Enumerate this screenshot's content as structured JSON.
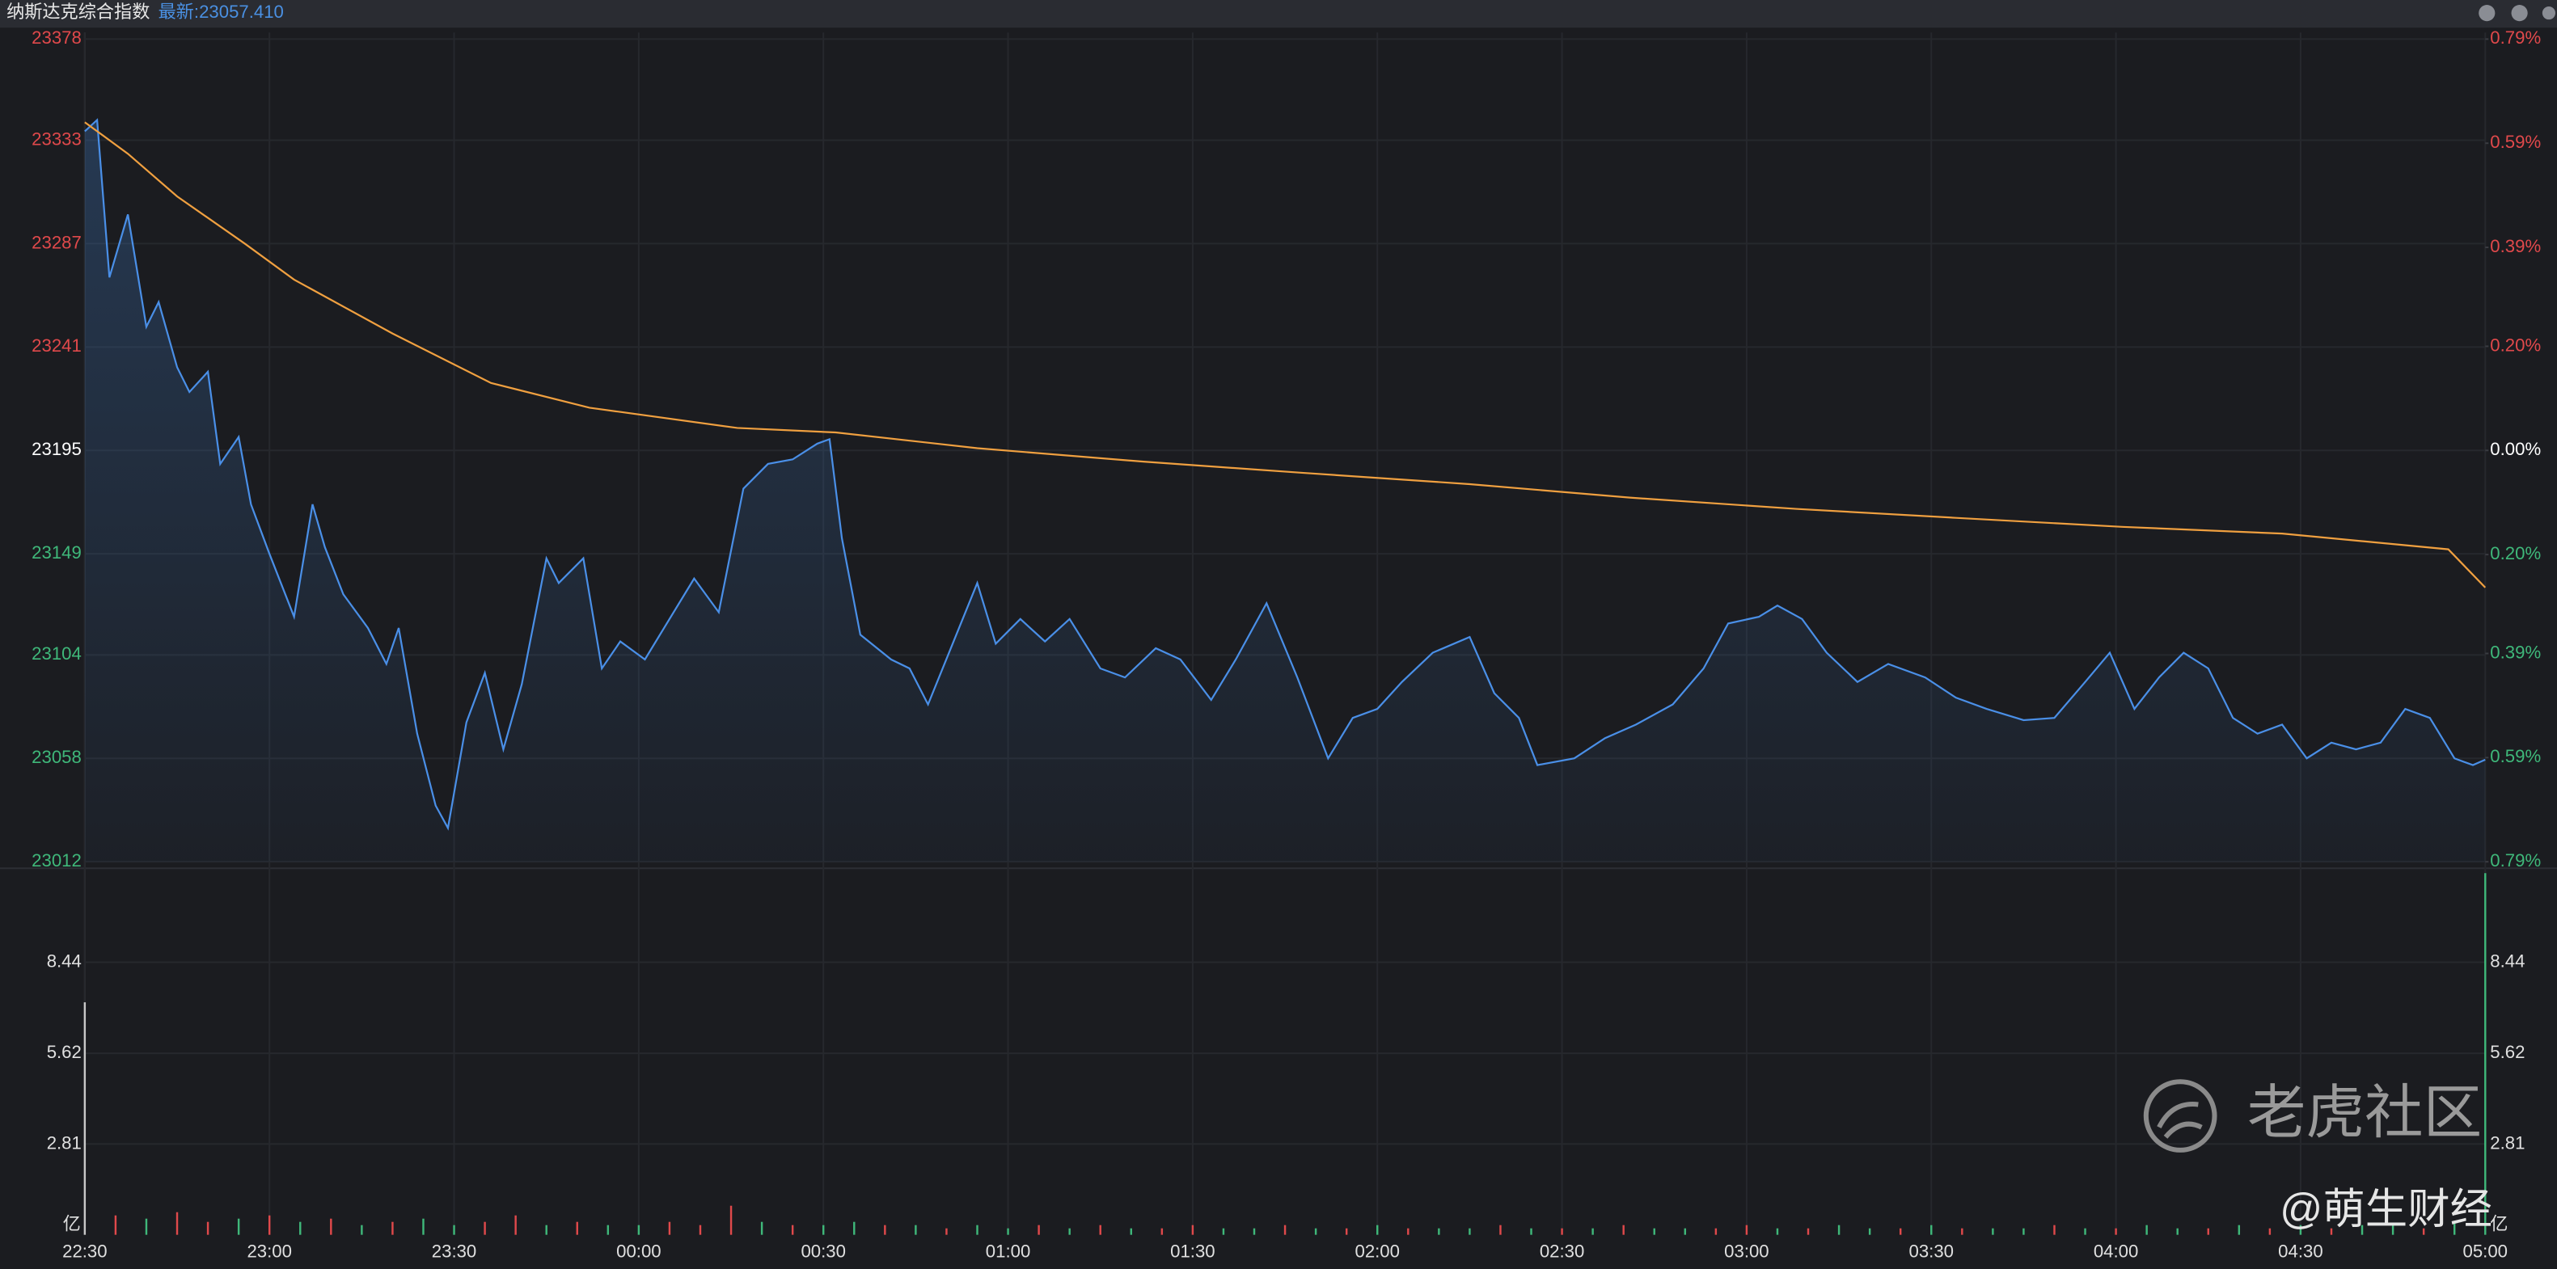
{
  "chart_data": [
    {
      "type": "line",
      "title": "纳斯达克综合指数",
      "subtitle": "最新:23057.410",
      "xlim": [
        0,
        390
      ],
      "xticks": [
        {
          "value": 0,
          "label": "22:30"
        },
        {
          "value": 30,
          "label": "23:00"
        },
        {
          "value": 60,
          "label": "23:30"
        },
        {
          "value": 90,
          "label": "00:00"
        },
        {
          "value": 120,
          "label": "00:30"
        },
        {
          "value": 150,
          "label": "01:00"
        },
        {
          "value": 180,
          "label": "01:30"
        },
        {
          "value": 210,
          "label": "02:00"
        },
        {
          "value": 240,
          "label": "02:30"
        },
        {
          "value": 270,
          "label": "03:00"
        },
        {
          "value": 300,
          "label": "03:30"
        },
        {
          "value": 330,
          "label": "04:00"
        },
        {
          "value": 360,
          "label": "04:30"
        },
        {
          "value": 390,
          "label": "05:00"
        }
      ],
      "ylim": [
        23012,
        23378
      ],
      "yticks": [
        23378,
        23333,
        23287,
        23241,
        23195,
        23149,
        23104,
        23058,
        23012
      ],
      "y2lim": [
        -0.79,
        0.79
      ],
      "y2ticks": [
        {
          "value": 0.79,
          "label": "0.79%"
        },
        {
          "value": 0.59,
          "label": "0.59%"
        },
        {
          "value": 0.39,
          "label": "0.39%"
        },
        {
          "value": 0.2,
          "label": "0.20%"
        },
        {
          "value": 0,
          "label": "0.00%"
        },
        {
          "value": -0.2,
          "label": "0.20%"
        },
        {
          "value": -0.39,
          "label": "0.39%"
        },
        {
          "value": -0.59,
          "label": "0.59%"
        },
        {
          "value": -0.79,
          "label": "0.79%"
        }
      ],
      "up_color": "#e0494b",
      "down_color": "#3fb87a",
      "flat_color": "#ffffff",
      "grid": true,
      "series": [
        {
          "color": "#4a8fe7",
          "x": [
            0,
            2,
            4,
            7,
            10,
            12,
            15,
            17,
            20,
            22,
            25,
            27,
            30,
            34,
            37,
            39,
            42,
            46,
            49,
            51,
            54,
            57,
            59,
            62,
            65,
            68,
            71,
            75,
            77,
            81,
            84,
            87,
            91,
            95,
            99,
            103,
            107,
            111,
            115,
            119,
            121,
            123,
            126,
            131,
            134,
            137,
            141,
            145,
            148,
            152,
            156,
            160,
            165,
            169,
            174,
            178,
            183,
            187,
            192,
            197,
            202,
            206,
            210,
            214,
            219,
            225,
            229,
            233,
            236,
            242,
            247,
            252,
            258,
            263,
            267,
            272,
            275,
            279,
            283,
            288,
            293,
            299,
            304,
            309,
            315,
            320,
            325,
            329,
            333,
            337,
            341,
            345,
            349,
            353,
            357,
            361,
            365,
            369,
            373,
            377,
            381,
            385,
            388,
            390
          ],
          "values": [
            23337,
            23342,
            23272,
            23300,
            23250,
            23261,
            23232,
            23221,
            23230,
            23189,
            23201,
            23171,
            23149,
            23121,
            23171,
            23152,
            23131,
            23116,
            23100,
            23116,
            23069,
            23037,
            23027,
            23074,
            23096,
            23062,
            23091,
            23147,
            23136,
            23147,
            23098,
            23110,
            23102,
            23120,
            23138,
            23123,
            23178,
            23189,
            23191,
            23198,
            23200,
            23156,
            23113,
            23102,
            23098,
            23082,
            23109,
            23136,
            23109,
            23120,
            23110,
            23120,
            23098,
            23094,
            23107,
            23102,
            23084,
            23102,
            23127,
            23094,
            23058,
            23076,
            23080,
            23092,
            23105,
            23112,
            23087,
            23076,
            23055,
            23058,
            23067,
            23073,
            23082,
            23098,
            23118,
            23121,
            23126,
            23120,
            23105,
            23092,
            23100,
            23094,
            23085,
            23080,
            23075,
            23076,
            23092,
            23105,
            23080,
            23094,
            23105,
            23098,
            23076,
            23069,
            23073,
            23058,
            23065,
            23062,
            23065,
            23080,
            23076,
            23058,
            23055,
            23057.41
          ]
        },
        {
          "color": "#f0a040",
          "x": [
            0,
            7,
            15,
            26,
            34,
            50,
            66,
            82,
            106,
            122,
            145,
            172,
            198,
            225,
            251,
            278,
            304,
            331,
            357,
            384,
            390
          ],
          "values": [
            23341,
            23327,
            23308,
            23287,
            23271,
            23247,
            23225,
            23214,
            23205,
            23203,
            23196,
            23190,
            23185,
            23180,
            23174,
            23169,
            23165,
            23161,
            23158,
            23151,
            23134
          ]
        }
      ]
    },
    {
      "type": "bar",
      "unit_label": "亿",
      "xlim": [
        0,
        390
      ],
      "ylim": [
        0,
        11.25
      ],
      "yticks": [
        8.44,
        5.62,
        2.81
      ],
      "x": [
        0,
        5,
        10,
        15,
        20,
        25,
        30,
        35,
        40,
        45,
        50,
        55,
        60,
        65,
        70,
        75,
        80,
        85,
        90,
        95,
        100,
        105,
        110,
        115,
        120,
        125,
        130,
        135,
        140,
        145,
        150,
        155,
        160,
        165,
        170,
        175,
        180,
        185,
        190,
        195,
        200,
        205,
        210,
        215,
        220,
        225,
        230,
        235,
        240,
        245,
        250,
        255,
        260,
        265,
        270,
        275,
        280,
        285,
        290,
        295,
        300,
        305,
        310,
        315,
        320,
        325,
        330,
        335,
        340,
        345,
        350,
        355,
        360,
        365,
        370,
        375,
        380,
        385,
        390
      ],
      "values": [
        7.2,
        0.6,
        0.5,
        0.7,
        0.4,
        0.5,
        0.6,
        0.4,
        0.5,
        0.3,
        0.4,
        0.5,
        0.3,
        0.4,
        0.6,
        0.3,
        0.4,
        0.3,
        0.3,
        0.4,
        0.3,
        0.9,
        0.4,
        0.3,
        0.3,
        0.4,
        0.3,
        0.3,
        0.2,
        0.3,
        0.2,
        0.3,
        0.2,
        0.3,
        0.2,
        0.2,
        0.3,
        0.2,
        0.2,
        0.3,
        0.2,
        0.2,
        0.3,
        0.2,
        0.2,
        0.2,
        0.3,
        0.2,
        0.2,
        0.2,
        0.3,
        0.2,
        0.2,
        0.2,
        0.3,
        0.2,
        0.2,
        0.3,
        0.2,
        0.2,
        0.3,
        0.2,
        0.2,
        0.2,
        0.3,
        0.2,
        0.2,
        0.3,
        0.2,
        0.2,
        0.3,
        0.2,
        0.3,
        0.2,
        0.3,
        0.3,
        0.2,
        0.4,
        11.2
      ],
      "colors": [
        "#c8c8c8",
        "#e0494b",
        "#3fb87a",
        "#e0494b",
        "#e0494b",
        "#3fb87a",
        "#e0494b",
        "#3fb87a",
        "#e0494b",
        "#3fb87a",
        "#e0494b",
        "#3fb87a",
        "#3fb87a",
        "#e0494b",
        "#e0494b",
        "#3fb87a",
        "#e0494b",
        "#3fb87a",
        "#3fb87a",
        "#e0494b",
        "#e0494b",
        "#e0494b",
        "#3fb87a",
        "#e0494b",
        "#3fb87a",
        "#3fb87a",
        "#e0494b",
        "#3fb87a",
        "#e0494b",
        "#3fb87a",
        "#3fb87a",
        "#e0494b",
        "#3fb87a",
        "#e0494b",
        "#3fb87a",
        "#e0494b",
        "#e0494b",
        "#3fb87a",
        "#3fb87a",
        "#e0494b",
        "#3fb87a",
        "#e0494b",
        "#3fb87a",
        "#e0494b",
        "#3fb87a",
        "#3fb87a",
        "#e0494b",
        "#3fb87a",
        "#e0494b",
        "#3fb87a",
        "#e0494b",
        "#3fb87a",
        "#3fb87a",
        "#e0494b",
        "#e0494b",
        "#3fb87a",
        "#e0494b",
        "#3fb87a",
        "#3fb87a",
        "#e0494b",
        "#3fb87a",
        "#e0494b",
        "#3fb87a",
        "#3fb87a",
        "#e0494b",
        "#3fb87a",
        "#e0494b",
        "#3fb87a",
        "#3fb87a",
        "#e0494b",
        "#3fb87a",
        "#e0494b",
        "#3fb87a",
        "#e0494b",
        "#3fb87a",
        "#3fb87a",
        "#e0494b",
        "#3fb87a",
        "#3fb87a"
      ]
    }
  ],
  "watermark": {
    "brand": "老虎社区",
    "author": "@萌生财经"
  }
}
